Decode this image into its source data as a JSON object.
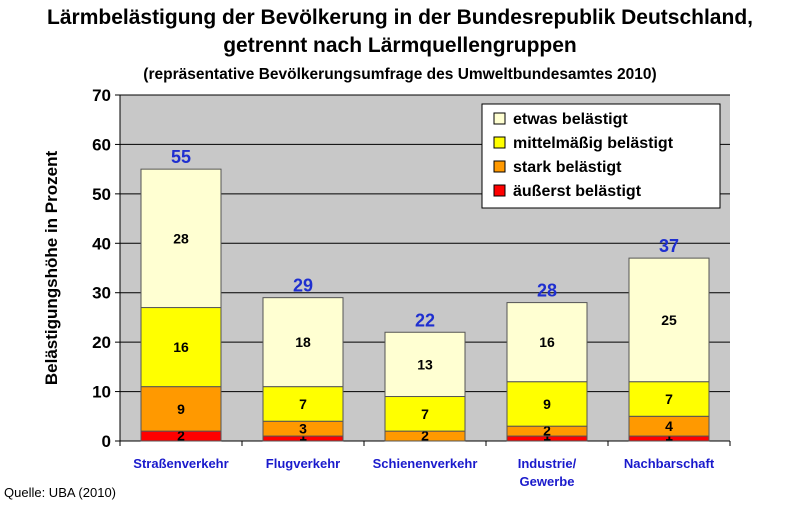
{
  "title_line1": "Lärmbelästigung der Bevölkerung in der Bundesrepublik Deutschland,",
  "title_line2": "getrennt nach Lärmquellengruppen",
  "subtitle": "(repräsentative Bevölkerungsumfrage des Umweltbundesamtes 2010)",
  "source": "Quelle: UBA (2010)",
  "colors": {
    "plot_bg": "#c8c8c8",
    "totals": "#1f2fd0",
    "etwas": "#ffffd2",
    "mittelmaessig": "#ffff00",
    "stark": "#ff9900",
    "aeusserst": "#ff0000",
    "category_labels": "#1a1acc"
  },
  "chart_data": {
    "type": "bar",
    "stacked": true,
    "categories": [
      "Straßenverkehr",
      "Flugverkehr",
      "Schienenverkehr",
      "Industrie/ Gewerbe",
      "Nachbarschaft"
    ],
    "series": [
      {
        "name": "äußerst belästigt",
        "values": [
          2,
          1,
          0,
          1,
          1
        ],
        "color_key": "aeusserst"
      },
      {
        "name": "stark belästigt",
        "values": [
          9,
          3,
          2,
          2,
          4
        ],
        "color_key": "stark"
      },
      {
        "name": "mittelmäßig belästigt",
        "values": [
          16,
          7,
          7,
          9,
          7
        ],
        "color_key": "mittelmaessig"
      },
      {
        "name": "etwas belästigt",
        "values": [
          28,
          18,
          13,
          16,
          25
        ],
        "color_key": "etwas"
      }
    ],
    "segment_labels": [
      [
        "2",
        "1",
        "",
        "1",
        "1"
      ],
      [
        "9",
        "3",
        "2",
        "2",
        "4"
      ],
      [
        "16",
        "7",
        "7",
        "9",
        "7"
      ],
      [
        "28",
        "18",
        "13",
        "16",
        "25"
      ]
    ],
    "totals": [
      55,
      29,
      22,
      28,
      37
    ],
    "ylabel": "Belästigungshöhe in Prozent",
    "xlabel": "",
    "ylim": [
      0,
      70
    ],
    "yticks": [
      0,
      10,
      20,
      30,
      40,
      50,
      60,
      70
    ],
    "grid": true,
    "legend_position": "top-right",
    "legend_order": [
      "etwas belästigt",
      "mittelmäßig belästigt",
      "stark belästigt",
      "äußerst belästigt"
    ]
  }
}
